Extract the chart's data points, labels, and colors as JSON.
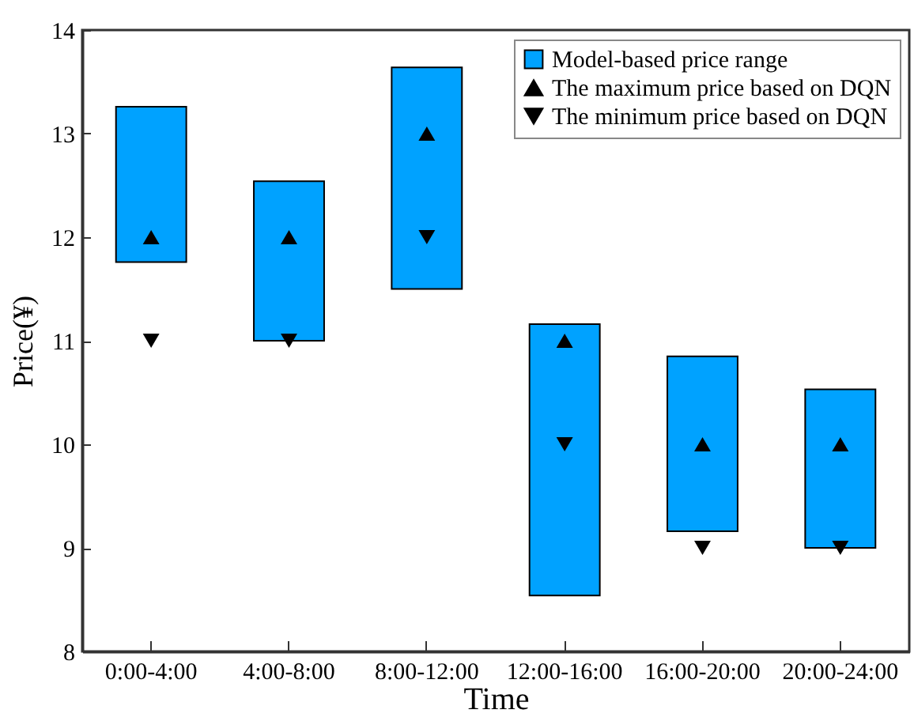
{
  "chart_data": {
    "type": "bar",
    "xlabel": "Time",
    "ylabel": "Price(¥)",
    "categories": [
      "0:00-4:00",
      "4:00-8:00",
      "8:00-12:00",
      "12:00-16:00",
      "16:00-20:00",
      "20:00-24:00"
    ],
    "series": [
      {
        "name": "Model-based price range",
        "color": "#00a2ff",
        "base": [
          11.76,
          11.0,
          11.5,
          8.54,
          9.16,
          9.0
        ],
        "values": [
          1.5,
          1.54,
          2.14,
          2.62,
          1.69,
          1.53
        ]
      },
      {
        "name": "The maximum price based on DQN",
        "type": "scatter",
        "marker": "triangle",
        "color": "#000000",
        "values": [
          12,
          12,
          13,
          11,
          10,
          10
        ]
      },
      {
        "name": "The minimum price based on DQN",
        "type": "scatter",
        "marker": "triangle-down",
        "color": "#000000",
        "values": [
          11,
          11,
          12,
          10,
          9,
          9
        ]
      }
    ],
    "ylim": [
      8,
      14
    ],
    "yticks": [
      8,
      9,
      10,
      11,
      12,
      13,
      14
    ],
    "grid": false,
    "legend": "top right"
  }
}
